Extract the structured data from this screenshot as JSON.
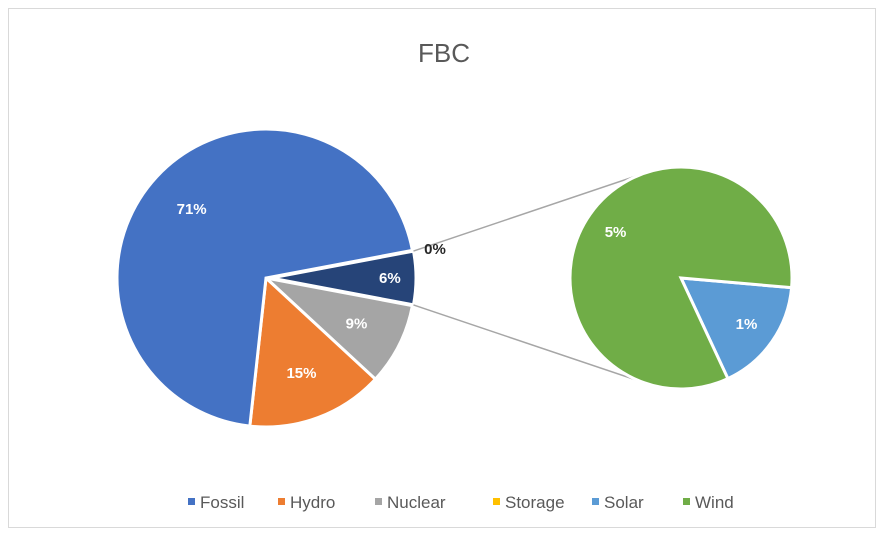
{
  "chart_data": {
    "type": "pie",
    "subtype": "pie-of-pie",
    "title": "FBC",
    "categories": [
      "Fossil",
      "Hydro",
      "Nuclear",
      "Storage",
      "Solar",
      "Wind"
    ],
    "series": [
      {
        "values": [
          71,
          15,
          9,
          0,
          1,
          5
        ],
        "data_labels": [
          "71%",
          "15%",
          "9%",
          "0%",
          "1%",
          "5%"
        ]
      }
    ],
    "colors": [
      "#4472C4",
      "#ED7D31",
      "#A5A5A5",
      "#FFC000",
      "#5B9BD5",
      "#70AD47"
    ],
    "other_slice_color": "#264478",
    "other_slice_label": "6%",
    "secondary_pie_categories": [
      "Storage",
      "Solar",
      "Wind"
    ],
    "legend_position": "bottom"
  }
}
